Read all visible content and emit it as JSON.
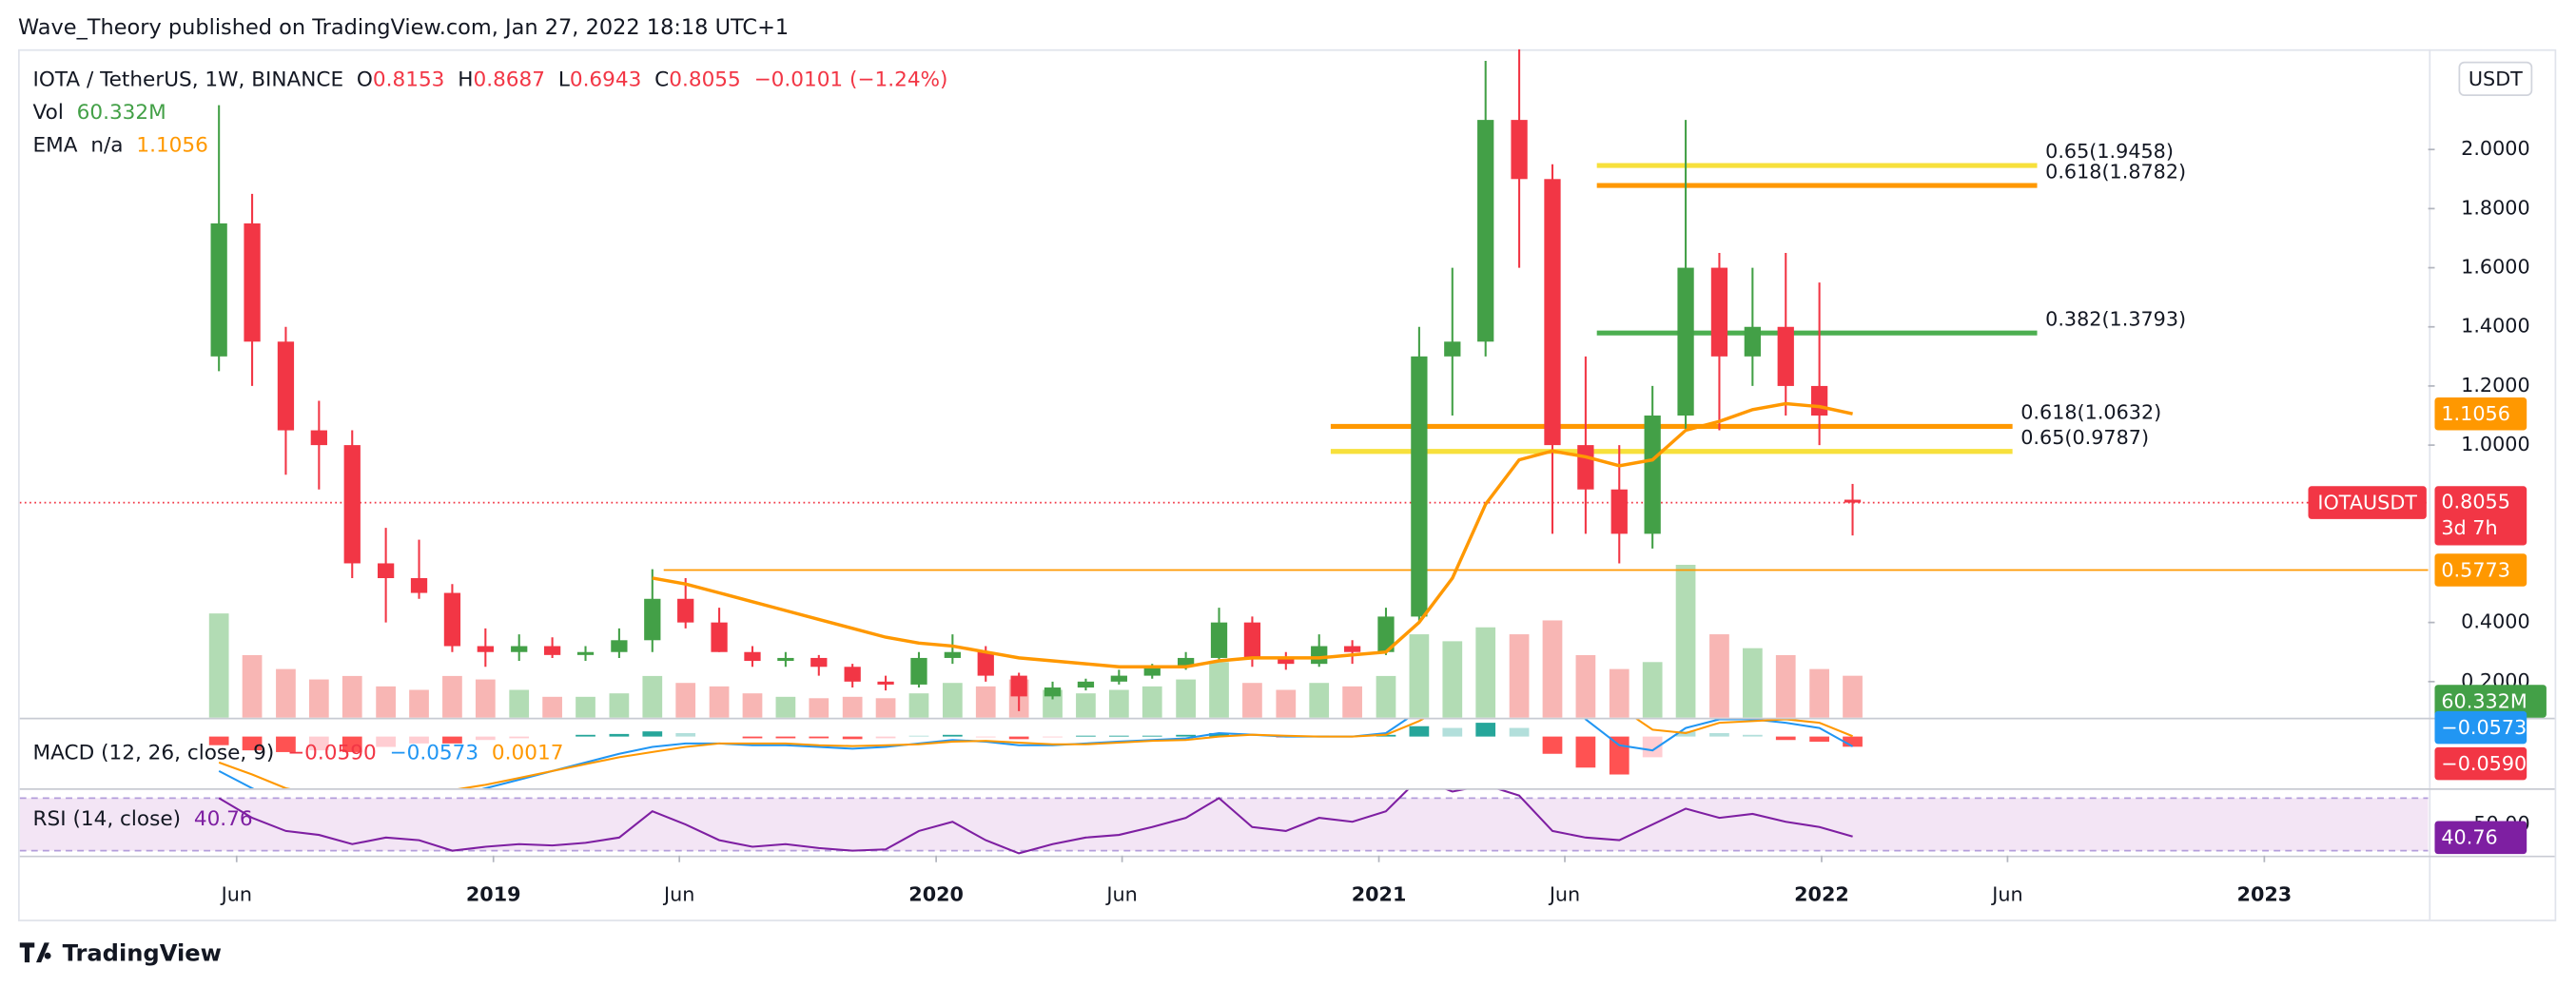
{
  "header": {
    "published": "Wave_Theory published on TradingView.com, Jan 27, 2022 18:18 UTC+1"
  },
  "footer": {
    "brand": "TradingView"
  },
  "chart_data": {
    "type": "candlestick",
    "symbol": "IOTA / TetherUS, 1W, BINANCE",
    "ohlc_keys": [
      "O",
      "H",
      "L",
      "C"
    ],
    "change_label": "−0.0101 (−1.24%)",
    "unit": "USDT",
    "ticker_label": "IOTAUSDT",
    "countdown": "3d 7h",
    "up_color": "#43a047",
    "down_color": "#f23645",
    "xlim": [
      2017.93,
      2023.37
    ],
    "xticks": [
      {
        "value": 2018.42,
        "label": "Jun"
      },
      2019,
      {
        "value": 2019.42,
        "label": "Jun"
      },
      2020,
      {
        "value": 2020.42,
        "label": "Jun"
      },
      2021,
      {
        "value": 2021.42,
        "label": "Jun"
      },
      2022,
      {
        "value": 2022.42,
        "label": "Jun"
      },
      2023
    ],
    "ylim": [
      0.078,
      2.339
    ],
    "yticks": [
      {
        "value": 0.2,
        "label": "0.2000"
      },
      {
        "value": 0.4,
        "label": "0.4000"
      },
      {
        "value": 1.0,
        "label": "1.0000"
      },
      {
        "value": 1.2,
        "label": "1.2000"
      },
      {
        "value": 1.4,
        "label": "1.4000"
      },
      {
        "value": 1.6,
        "label": "1.6000"
      },
      {
        "value": 1.8,
        "label": "1.8000"
      },
      {
        "value": 2.0,
        "label": "2.0000"
      }
    ],
    "grid": false,
    "x": [
      2018.38,
      2018.455,
      2018.531,
      2018.606,
      2018.681,
      2018.757,
      2018.832,
      2018.907,
      2018.982,
      2019.058,
      2019.133,
      2019.208,
      2019.284,
      2019.359,
      2019.434,
      2019.51,
      2019.585,
      2019.66,
      2019.735,
      2019.811,
      2019.886,
      2019.961,
      2020.037,
      2020.112,
      2020.187,
      2020.263,
      2020.338,
      2020.413,
      2020.488,
      2020.564,
      2020.639,
      2020.714,
      2020.79,
      2020.865,
      2020.94,
      2021.016,
      2021.091,
      2021.166,
      2021.241,
      2021.317,
      2021.392,
      2021.467,
      2021.543,
      2021.618,
      2021.693,
      2021.769,
      2021.844,
      2021.919,
      2021.995,
      2022.07
    ],
    "open": [
      1.3,
      1.75,
      1.35,
      1.05,
      1.0,
      0.6,
      0.55,
      0.5,
      0.32,
      0.3,
      0.32,
      0.29,
      0.3,
      0.34,
      0.48,
      0.4,
      0.3,
      0.27,
      0.28,
      0.25,
      0.2,
      0.19,
      0.28,
      0.3,
      0.22,
      0.15,
      0.18,
      0.2,
      0.22,
      0.25,
      0.28,
      0.4,
      0.28,
      0.26,
      0.32,
      0.3,
      0.42,
      1.3,
      1.35,
      2.1,
      1.9,
      1.0,
      0.85,
      0.7,
      1.1,
      1.6,
      1.3,
      1.4,
      1.2,
      0.8153
    ],
    "high": [
      2.15,
      1.85,
      1.4,
      1.15,
      1.05,
      0.72,
      0.68,
      0.53,
      0.38,
      0.36,
      0.35,
      0.32,
      0.38,
      0.58,
      0.55,
      0.45,
      0.32,
      0.3,
      0.29,
      0.26,
      0.22,
      0.3,
      0.36,
      0.32,
      0.23,
      0.2,
      0.21,
      0.24,
      0.26,
      0.3,
      0.45,
      0.42,
      0.3,
      0.36,
      0.34,
      0.45,
      1.4,
      1.6,
      2.3,
      2.35,
      1.95,
      1.3,
      1.0,
      1.2,
      2.1,
      1.65,
      1.6,
      1.65,
      1.55,
      0.8687
    ],
    "low": [
      1.25,
      1.2,
      0.9,
      0.85,
      0.55,
      0.4,
      0.48,
      0.3,
      0.25,
      0.27,
      0.28,
      0.27,
      0.28,
      0.3,
      0.38,
      0.3,
      0.25,
      0.25,
      0.22,
      0.18,
      0.17,
      0.18,
      0.26,
      0.2,
      0.1,
      0.14,
      0.17,
      0.19,
      0.21,
      0.24,
      0.27,
      0.25,
      0.24,
      0.25,
      0.26,
      0.29,
      0.4,
      1.1,
      1.3,
      1.6,
      0.7,
      0.7,
      0.6,
      0.65,
      1.05,
      1.05,
      1.2,
      1.1,
      1.0,
      0.6943
    ],
    "close": [
      1.75,
      1.35,
      1.05,
      1.0,
      0.6,
      0.55,
      0.5,
      0.32,
      0.3,
      0.32,
      0.29,
      0.3,
      0.34,
      0.48,
      0.4,
      0.3,
      0.27,
      0.28,
      0.25,
      0.2,
      0.19,
      0.28,
      0.3,
      0.22,
      0.15,
      0.18,
      0.2,
      0.22,
      0.25,
      0.28,
      0.4,
      0.28,
      0.26,
      0.32,
      0.3,
      0.42,
      1.3,
      1.35,
      2.1,
      1.9,
      1.0,
      0.85,
      0.7,
      1.1,
      1.6,
      1.3,
      1.4,
      1.2,
      1.1,
      0.8055
    ],
    "volume": {
      "label": "Vol",
      "last_label": "60.332M",
      "ylim": [
        0,
        260
      ],
      "color": "#a5d6a7",
      "values": [
        150,
        90,
        70,
        55,
        60,
        45,
        40,
        60,
        55,
        40,
        30,
        30,
        35,
        60,
        50,
        45,
        35,
        30,
        28,
        30,
        28,
        35,
        50,
        45,
        55,
        40,
        35,
        40,
        45,
        55,
        80,
        50,
        40,
        50,
        45,
        60,
        120,
        110,
        130,
        120,
        140,
        90,
        70,
        80,
        220,
        120,
        100,
        90,
        70,
        60.332
      ]
    },
    "ema": {
      "label": "EMA",
      "length": "n/a",
      "color": "#ff9800",
      "values": [
        null,
        null,
        null,
        null,
        null,
        null,
        null,
        null,
        null,
        null,
        null,
        null,
        null,
        0.55,
        0.53,
        0.5,
        0.47,
        0.44,
        0.41,
        0.38,
        0.35,
        0.33,
        0.32,
        0.3,
        0.28,
        0.27,
        0.26,
        0.25,
        0.25,
        0.25,
        0.27,
        0.28,
        0.28,
        0.28,
        0.29,
        0.3,
        0.4,
        0.55,
        0.8,
        0.95,
        0.98,
        0.96,
        0.93,
        0.95,
        1.05,
        1.08,
        1.12,
        1.14,
        1.13,
        1.1056
      ]
    },
    "levels": [
      {
        "label": "0.65(1.9458)",
        "value": 1.9458,
        "color": "#f7e03c"
      },
      {
        "label": "0.618(1.8782)",
        "value": 1.8782,
        "color": "#ff9800"
      },
      {
        "label": "0.382(1.3793)",
        "value": 1.3793,
        "color": "#4caf50"
      },
      {
        "label": "0.618(1.0632)",
        "value": 1.0632,
        "color": "#ff9800"
      },
      {
        "label": "0.65(0.9787)",
        "value": 0.9787,
        "color": "#f7e03c"
      }
    ],
    "support": {
      "value": 0.5773,
      "color": "#ff9800"
    },
    "macd": {
      "title": "MACD (12, 26, close, 9)",
      "ylim": [
        -0.3,
        0.1
      ],
      "histogram": {
        "last_label": "−0.0590",
        "color": "#f23645",
        "values": [
          -0.05,
          -0.08,
          -0.09,
          -0.08,
          -0.09,
          -0.06,
          -0.04,
          -0.04,
          -0.02,
          -0.01,
          0.0,
          0.01,
          0.015,
          0.03,
          0.02,
          0.0,
          -0.01,
          -0.01,
          -0.01,
          -0.015,
          -0.01,
          0.005,
          0.01,
          -0.005,
          -0.015,
          -0.005,
          0.005,
          0.005,
          0.005,
          0.01,
          0.02,
          0.0,
          -0.005,
          0.005,
          0.0,
          0.01,
          0.06,
          0.05,
          0.08,
          0.05,
          -0.1,
          -0.18,
          -0.22,
          -0.12,
          0.03,
          0.02,
          0.01,
          -0.02,
          -0.03,
          -0.059
        ]
      },
      "macd": {
        "last_label": "−0.0573",
        "color": "#2196f3",
        "values": [
          -0.2,
          -0.3,
          -0.4,
          -0.42,
          -0.45,
          -0.42,
          -0.38,
          -0.35,
          -0.3,
          -0.25,
          -0.2,
          -0.15,
          -0.1,
          -0.06,
          -0.04,
          -0.04,
          -0.05,
          -0.05,
          -0.06,
          -0.07,
          -0.06,
          -0.04,
          -0.02,
          -0.03,
          -0.05,
          -0.05,
          -0.04,
          -0.03,
          -0.02,
          -0.01,
          0.02,
          0.01,
          0.0,
          0.0,
          0.0,
          0.02,
          0.15,
          0.25,
          0.4,
          0.45,
          0.3,
          0.1,
          -0.05,
          -0.08,
          0.05,
          0.1,
          0.1,
          0.08,
          0.05,
          -0.0573
        ]
      },
      "signal": {
        "last_label": "0.0017",
        "color": "#ff9800",
        "values": [
          -0.15,
          -0.22,
          -0.3,
          -0.34,
          -0.36,
          -0.36,
          -0.34,
          -0.31,
          -0.28,
          -0.24,
          -0.2,
          -0.16,
          -0.12,
          -0.09,
          -0.06,
          -0.04,
          -0.04,
          -0.04,
          -0.05,
          -0.055,
          -0.05,
          -0.045,
          -0.03,
          -0.025,
          -0.035,
          -0.045,
          -0.045,
          -0.035,
          -0.025,
          -0.02,
          0.0,
          0.01,
          0.005,
          0.0,
          0.0,
          0.01,
          0.09,
          0.2,
          0.32,
          0.4,
          0.4,
          0.28,
          0.17,
          0.04,
          0.02,
          0.08,
          0.09,
          0.1,
          0.08,
          0.0017
        ]
      }
    },
    "rsi": {
      "title": "RSI (14, close)",
      "color": "#7e1fa2",
      "ylim": [
        27.5,
        75
      ],
      "band": [
        30,
        70
      ],
      "yticks": [
        {
          "value": 50,
          "label": "50.00"
        }
      ],
      "values": [
        70,
        55,
        45,
        42,
        35,
        40,
        38,
        30,
        33,
        35,
        34,
        36,
        40,
        60,
        50,
        38,
        33,
        35,
        32,
        30,
        31,
        45,
        52,
        38,
        28,
        35,
        40,
        42,
        48,
        55,
        70,
        48,
        45,
        55,
        52,
        60,
        85,
        75,
        80,
        72,
        45,
        40,
        38,
        50,
        62,
        55,
        58,
        52,
        48,
        40.76
      ]
    }
  }
}
